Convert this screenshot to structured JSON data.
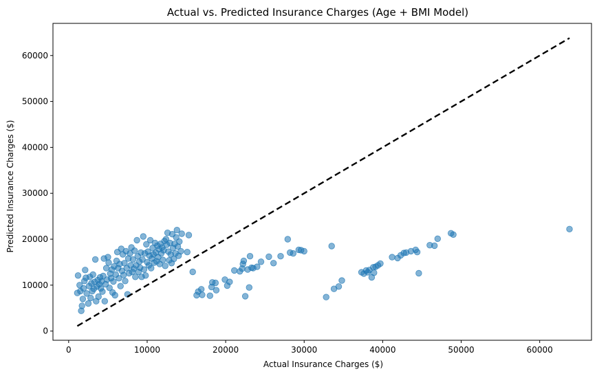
{
  "chart_data": {
    "type": "scatter",
    "title": "Actual vs. Predicted Insurance Charges (Age + BMI Model)",
    "xlabel": "Actual Insurance Charges ($)",
    "ylabel": "Predicted Insurance Charges ($)",
    "xlim": [
      -2000,
      66600
    ],
    "ylim": [
      -2000,
      67000
    ],
    "xticks": [
      0,
      10000,
      20000,
      30000,
      40000,
      50000,
      60000
    ],
    "yticks": [
      0,
      10000,
      20000,
      30000,
      40000,
      50000,
      60000
    ],
    "grid": false,
    "point_color": "#1f77b4",
    "point_alpha": 0.55,
    "reference_line": {
      "style": "dashed",
      "color": "#000000",
      "from": [
        1100,
        1100
      ],
      "to": [
        63800,
        63800
      ]
    },
    "points": [
      [
        1100,
        8300
      ],
      [
        1200,
        12100
      ],
      [
        1400,
        10000
      ],
      [
        1500,
        8700
      ],
      [
        1600,
        4400
      ],
      [
        1700,
        5500
      ],
      [
        1800,
        7000
      ],
      [
        1900,
        9300
      ],
      [
        2000,
        10900
      ],
      [
        2100,
        13300
      ],
      [
        2200,
        11600
      ],
      [
        2300,
        8200
      ],
      [
        2500,
        6000
      ],
      [
        2600,
        9800
      ],
      [
        2700,
        11800
      ],
      [
        2800,
        7200
      ],
      [
        2900,
        10400
      ],
      [
        3000,
        8700
      ],
      [
        3100,
        12300
      ],
      [
        3200,
        9200
      ],
      [
        3300,
        10700
      ],
      [
        3400,
        15600
      ],
      [
        3500,
        6500
      ],
      [
        3600,
        9700
      ],
      [
        3700,
        11100
      ],
      [
        3800,
        7500
      ],
      [
        3900,
        10200
      ],
      [
        4000,
        11700
      ],
      [
        4100,
        9300
      ],
      [
        4200,
        10800
      ],
      [
        4300,
        8600
      ],
      [
        4400,
        12000
      ],
      [
        4500,
        15800
      ],
      [
        4600,
        6500
      ],
      [
        4700,
        10200
      ],
      [
        4800,
        13700
      ],
      [
        4900,
        11200
      ],
      [
        5000,
        16100
      ],
      [
        5100,
        14900
      ],
      [
        5200,
        9400
      ],
      [
        5300,
        12500
      ],
      [
        5400,
        11500
      ],
      [
        5500,
        13400
      ],
      [
        5600,
        8400
      ],
      [
        5700,
        10800
      ],
      [
        5800,
        14100
      ],
      [
        5900,
        7800
      ],
      [
        6000,
        12300
      ],
      [
        6100,
        15300
      ],
      [
        6200,
        17200
      ],
      [
        6300,
        13700
      ],
      [
        6400,
        11500
      ],
      [
        6500,
        14600
      ],
      [
        6600,
        9800
      ],
      [
        6700,
        17900
      ],
      [
        6800,
        13100
      ],
      [
        6900,
        16700
      ],
      [
        7000,
        12200
      ],
      [
        7100,
        14800
      ],
      [
        7200,
        10900
      ],
      [
        7300,
        17400
      ],
      [
        7400,
        13700
      ],
      [
        7500,
        8000
      ],
      [
        7600,
        15800
      ],
      [
        7700,
        12600
      ],
      [
        7800,
        16900
      ],
      [
        7900,
        14300
      ],
      [
        8000,
        18200
      ],
      [
        8100,
        12900
      ],
      [
        8200,
        15600
      ],
      [
        8300,
        13600
      ],
      [
        8400,
        17500
      ],
      [
        8500,
        11800
      ],
      [
        8600,
        14300
      ],
      [
        8700,
        19800
      ],
      [
        8800,
        16300
      ],
      [
        8900,
        12900
      ],
      [
        9000,
        15100
      ],
      [
        9100,
        13800
      ],
      [
        9200,
        17100
      ],
      [
        9300,
        11800
      ],
      [
        9400,
        15600
      ],
      [
        9500,
        20600
      ],
      [
        9600,
        13400
      ],
      [
        9700,
        16900
      ],
      [
        9800,
        12100
      ],
      [
        9900,
        18900
      ],
      [
        10000,
        15000
      ],
      [
        10100,
        17300
      ],
      [
        10200,
        14300
      ],
      [
        10300,
        16400
      ],
      [
        10400,
        19800
      ],
      [
        10500,
        13700
      ],
      [
        10600,
        15800
      ],
      [
        10700,
        18100
      ],
      [
        10800,
        16700
      ],
      [
        10900,
        14900
      ],
      [
        11000,
        19200
      ],
      [
        11100,
        17100
      ],
      [
        11200,
        15200
      ],
      [
        11300,
        18600
      ],
      [
        11400,
        16100
      ],
      [
        11500,
        17800
      ],
      [
        11600,
        14600
      ],
      [
        11700,
        19000
      ],
      [
        11800,
        16900
      ],
      [
        11900,
        18200
      ],
      [
        12000,
        15500
      ],
      [
        12100,
        17600
      ],
      [
        12200,
        19600
      ],
      [
        12300,
        14200
      ],
      [
        12400,
        20000
      ],
      [
        12500,
        18800
      ],
      [
        12600,
        21400
      ],
      [
        12700,
        17300
      ],
      [
        12800,
        15400
      ],
      [
        12900,
        19200
      ],
      [
        13000,
        16700
      ],
      [
        13100,
        14800
      ],
      [
        13200,
        21100
      ],
      [
        13300,
        18100
      ],
      [
        13400,
        15700
      ],
      [
        13500,
        19000
      ],
      [
        13600,
        16900
      ],
      [
        13700,
        20400
      ],
      [
        13800,
        22000
      ],
      [
        13900,
        18400
      ],
      [
        14000,
        16400
      ],
      [
        14100,
        19500
      ],
      [
        14300,
        17400
      ],
      [
        14400,
        21200
      ],
      [
        15100,
        17200
      ],
      [
        15300,
        20900
      ],
      [
        15800,
        12900
      ],
      [
        16300,
        7800
      ],
      [
        16500,
        8600
      ],
      [
        16900,
        9100
      ],
      [
        17000,
        7900
      ],
      [
        18000,
        7700
      ],
      [
        18200,
        9600
      ],
      [
        18300,
        10600
      ],
      [
        18700,
        10500
      ],
      [
        18800,
        8900
      ],
      [
        19900,
        11200
      ],
      [
        20200,
        9900
      ],
      [
        20500,
        10700
      ],
      [
        21100,
        13200
      ],
      [
        21800,
        13000
      ],
      [
        22100,
        13600
      ],
      [
        22200,
        14600
      ],
      [
        22300,
        15300
      ],
      [
        22500,
        7600
      ],
      [
        22800,
        13400
      ],
      [
        23000,
        9500
      ],
      [
        23100,
        16300
      ],
      [
        23300,
        13800
      ],
      [
        23500,
        13700
      ],
      [
        24000,
        14000
      ],
      [
        24500,
        15100
      ],
      [
        25500,
        16200
      ],
      [
        26100,
        14800
      ],
      [
        27000,
        16300
      ],
      [
        27900,
        20000
      ],
      [
        28200,
        17100
      ],
      [
        28600,
        16900
      ],
      [
        29300,
        17700
      ],
      [
        29600,
        17600
      ],
      [
        30000,
        17400
      ],
      [
        32800,
        7400
      ],
      [
        33500,
        18500
      ],
      [
        33800,
        9200
      ],
      [
        34400,
        9700
      ],
      [
        34800,
        11000
      ],
      [
        37300,
        12800
      ],
      [
        37600,
        12500
      ],
      [
        37900,
        13200
      ],
      [
        38100,
        12800
      ],
      [
        38300,
        13300
      ],
      [
        38600,
        11700
      ],
      [
        38800,
        13900
      ],
      [
        38900,
        12700
      ],
      [
        39100,
        14000
      ],
      [
        39400,
        14300
      ],
      [
        39700,
        14700
      ],
      [
        41200,
        16100
      ],
      [
        41900,
        15900
      ],
      [
        42300,
        16500
      ],
      [
        42700,
        17000
      ],
      [
        43000,
        17100
      ],
      [
        43600,
        17400
      ],
      [
        44200,
        17700
      ],
      [
        44400,
        17200
      ],
      [
        44600,
        12600
      ],
      [
        46000,
        18700
      ],
      [
        46600,
        18600
      ],
      [
        47000,
        20100
      ],
      [
        48700,
        21300
      ],
      [
        49000,
        21000
      ],
      [
        63800,
        22200
      ]
    ]
  }
}
